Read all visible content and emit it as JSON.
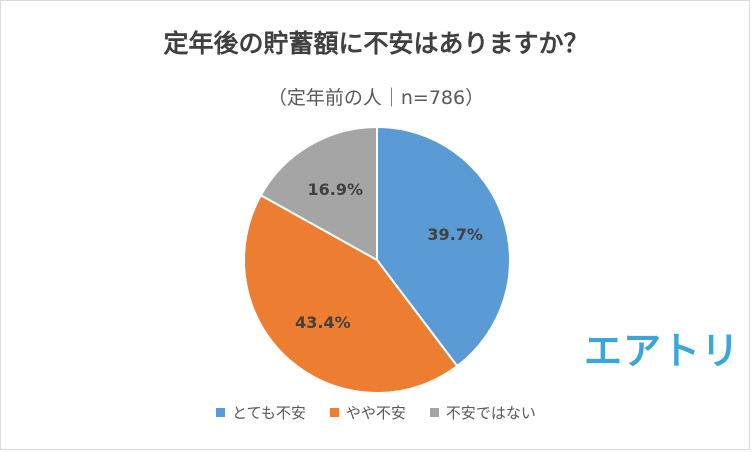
{
  "chart_data": {
    "type": "pie",
    "title": "定年後の貯蓄額に不安はありますか？",
    "subtitle": "（定年前の人｜n=786）",
    "categories": [
      "とても不安",
      "やや不安",
      "不安ではない"
    ],
    "values": [
      39.7,
      43.4,
      16.9
    ],
    "data_labels": [
      "39.7%",
      "43.4%",
      "16.9%"
    ],
    "colors": [
      "#5b9bd5",
      "#ed7d31",
      "#a5a5a5"
    ],
    "start_angle_deg": 0,
    "direction": "clockwise",
    "legend_position": "bottom"
  },
  "brand": {
    "logo_text": "エアトリ",
    "color": "#3aa6dc"
  }
}
